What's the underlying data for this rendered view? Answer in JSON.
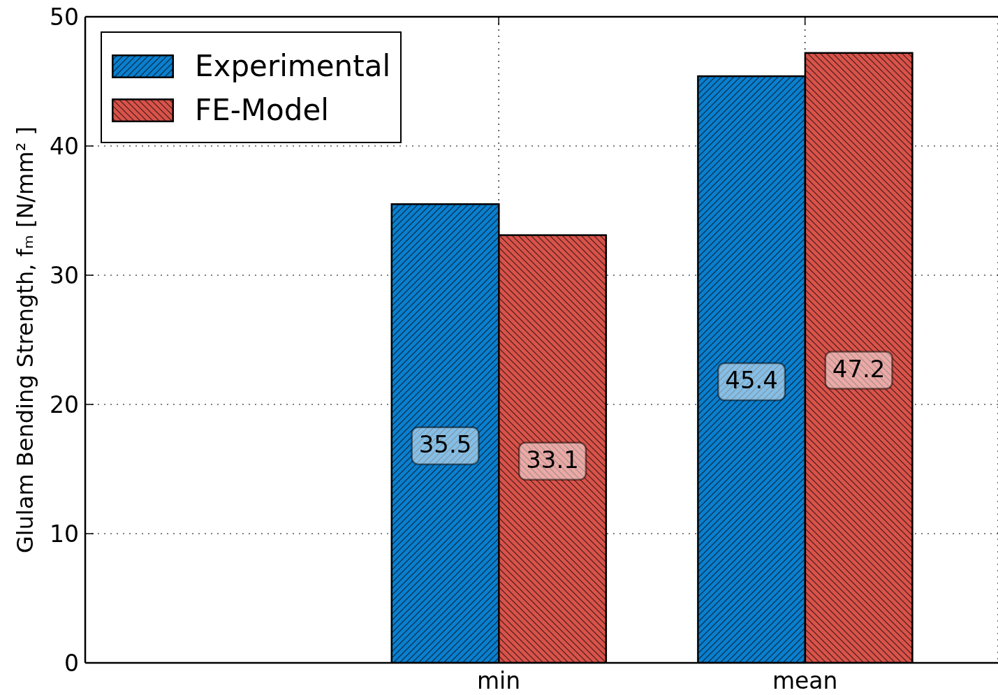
{
  "chart_data": {
    "type": "bar",
    "ylabel": "Glulam Bending Strength, fₘ [N/mm² ]",
    "categories": [
      "min",
      "mean"
    ],
    "ylim": [
      0,
      50
    ],
    "yticks": [
      0,
      10,
      20,
      30,
      40,
      50
    ],
    "grid": true,
    "legend": "top left",
    "data_labels": true,
    "series": [
      {
        "name": "Experimental",
        "color": "#0a7fcf",
        "values": [
          35.5,
          45.4
        ]
      },
      {
        "name": "FE-Model",
        "color": "#d9534a",
        "values": [
          33.1,
          47.2
        ]
      }
    ]
  }
}
